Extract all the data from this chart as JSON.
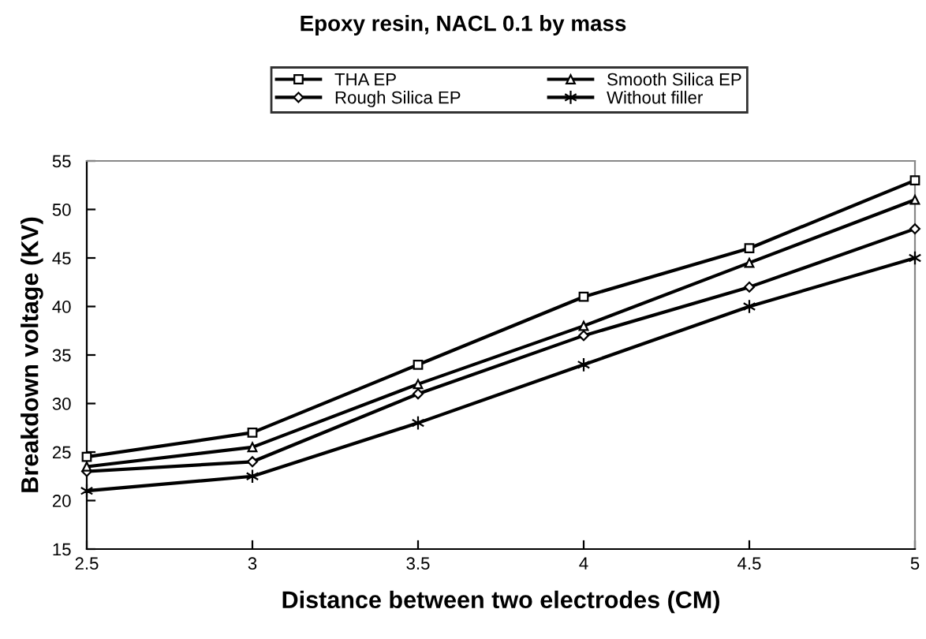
{
  "chart_data": {
    "type": "line",
    "title": "Epoxy resin, NACL 0.1 by mass",
    "xlabel": "Distance between two electrodes (CM)",
    "ylabel": "Breakdown voltage (KV)",
    "x": [
      2.5,
      3,
      3.5,
      4,
      4.5,
      5
    ],
    "series": [
      {
        "name": "THA EP",
        "color": "#000000",
        "marker": "square",
        "values": [
          24.5,
          27,
          34,
          41,
          46,
          53
        ]
      },
      {
        "name": "Smooth Silica EP",
        "color": "#000000",
        "marker": "triangle",
        "values": [
          23.5,
          25.5,
          32,
          38,
          44.5,
          51
        ]
      },
      {
        "name": "Rough Silica EP",
        "color": "#000000",
        "marker": "diamond",
        "values": [
          23,
          24,
          31,
          37,
          42,
          48
        ]
      },
      {
        "name": "Without filler",
        "color": "#000000",
        "marker": "cross",
        "values": [
          21,
          22.5,
          28,
          34,
          40,
          45
        ]
      }
    ],
    "xlim": [
      2.5,
      5
    ],
    "xticks": [
      2.5,
      3,
      3.5,
      4,
      4.5,
      5
    ],
    "ylim": [
      15,
      55
    ],
    "yticks": [
      15,
      20,
      25,
      30,
      35,
      40,
      45,
      50,
      55
    ],
    "grid": false,
    "legend": "top",
    "line_style": "solid"
  }
}
